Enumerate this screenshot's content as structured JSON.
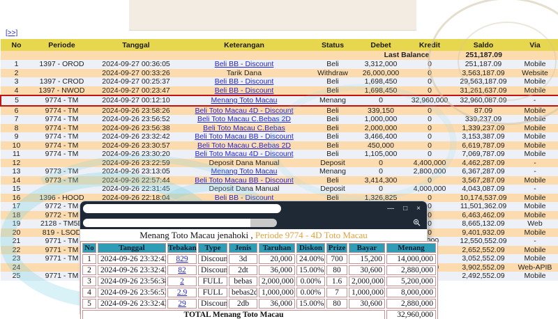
{
  "colors": {
    "accent_header": "#e7d74f",
    "row_light": "#edf0f6",
    "row_peach": "#fcdcae",
    "link_blue": "#2626cc",
    "kredit_blue": "#5353de",
    "saldo_purple": "#7d61d2",
    "lb_navy": "#16169b",
    "hl_red": "#c41212",
    "popup_bar": "#1e2935",
    "popup_teal": "#2f9db6",
    "popup_pink": "#cc8f8f",
    "popup_orange": "#dfa23f"
  },
  "page": {
    "more_link": "[>>]"
  },
  "main_table": {
    "headers": [
      "No",
      "Periode",
      "Tanggal",
      "Keterangan",
      "Status",
      "Debet",
      "Kredit",
      "Saldo",
      "Via"
    ],
    "last_balance_label": "Last Balance",
    "last_balance_value": "251,187.09",
    "rows": [
      {
        "no": "1",
        "periode": "1397 - OROD",
        "tanggal": "2024-09-27 00:36:05",
        "keterangan": "Beli BB - Discount",
        "is_link": true,
        "status": "Beli",
        "debet": "3,312,000",
        "kredit": "0",
        "saldo": "251,187.09",
        "via": "Mobile",
        "highlight": false
      },
      {
        "no": "2",
        "periode": "",
        "tanggal": "2024-09-27 00:33:26",
        "keterangan": "Tarik Dana",
        "is_link": false,
        "status": "Withdraw",
        "debet": "26,000,000",
        "kredit": "0",
        "saldo": "3,563,187.09",
        "via": "Website",
        "highlight": false
      },
      {
        "no": "3",
        "periode": "1397 - CROD",
        "tanggal": "2024-09-27 00:25:37",
        "keterangan": "Beli BB - Discount",
        "is_link": true,
        "status": "Beli",
        "debet": "1,698,450",
        "kredit": "0",
        "saldo": "29,563,187.09",
        "via": "Mobile",
        "highlight": false
      },
      {
        "no": "4",
        "periode": "1397 - NWOD",
        "tanggal": "2024-09-27 00:23:47",
        "keterangan": "Beli BB - Discount",
        "is_link": true,
        "status": "Beli",
        "debet": "1,698,450",
        "kredit": "0",
        "saldo": "31,261,637.09",
        "via": "Mobile",
        "highlight": false
      },
      {
        "no": "5",
        "periode": "9774 - TM",
        "tanggal": "2024-09-27 00:12:10",
        "keterangan": "Menang Toto Macau",
        "is_link": true,
        "status": "Menang",
        "debet": "0",
        "kredit": "32,960,000",
        "saldo": "32,960,087.09",
        "via": "-",
        "highlight": true
      },
      {
        "no": "6",
        "periode": "9774 - TM",
        "tanggal": "2024-09-26 23:58:26",
        "keterangan": "Beli Toto Macau 4D - Discount",
        "is_link": true,
        "status": "Beli",
        "debet": "339,150",
        "kredit": "0",
        "saldo": "87.09",
        "via": "Mobile",
        "highlight": false
      },
      {
        "no": "7",
        "periode": "9774 - TM",
        "tanggal": "2024-09-26 23:56:52",
        "keterangan": "Beli Toto Macau C.Bebas 2D",
        "is_link": true,
        "status": "Beli",
        "debet": "1,000,000",
        "kredit": "0",
        "saldo": "339,237.09",
        "via": "Mobile",
        "highlight": false
      },
      {
        "no": "8",
        "periode": "9774 - TM",
        "tanggal": "2024-09-26 23:56:38",
        "keterangan": "Beli Toto Macau C.Bebas",
        "is_link": true,
        "status": "Beli",
        "debet": "2,000,000",
        "kredit": "0",
        "saldo": "1,339,237.09",
        "via": "Mobile",
        "highlight": false
      },
      {
        "no": "9",
        "periode": "9774 - TM",
        "tanggal": "2024-09-26 23:32:42",
        "keterangan": "Beli Toto Macau BB - Discount",
        "is_link": true,
        "status": "Beli",
        "debet": "3,466,400",
        "kredit": "0",
        "saldo": "3,153,387.09",
        "via": "Mobile",
        "highlight": false
      },
      {
        "no": "10",
        "periode": "9774 - TM",
        "tanggal": "2024-09-26 23:30:57",
        "keterangan": "Beli Toto Macau C.Bebas 2D",
        "is_link": true,
        "status": "Beli",
        "debet": "450,000",
        "kredit": "0",
        "saldo": "6,619,787.09",
        "via": "Mobile",
        "highlight": false
      },
      {
        "no": "11",
        "periode": "9774 - TM",
        "tanggal": "2024-09-26 23:30:20",
        "keterangan": "Beli Toto Macau 4D - Discount",
        "is_link": true,
        "status": "Beli",
        "debet": "1,105,000",
        "kredit": "0",
        "saldo": "7,069,787.09",
        "via": "Mobile",
        "highlight": false
      },
      {
        "no": "12",
        "periode": "",
        "tanggal": "2024-09-26 23:22:59",
        "keterangan": "Deposit Dana Manual",
        "is_link": false,
        "status": "Deposit",
        "debet": "0",
        "kredit": "4,400,000",
        "saldo": "4,462,287.09",
        "via": "-",
        "highlight": false
      },
      {
        "no": "13",
        "periode": "9773 - TM",
        "tanggal": "2024-09-26 23:13:05",
        "keterangan": "Menang Toto Macau",
        "is_link": true,
        "status": "Menang",
        "debet": "0",
        "kredit": "2,800,000",
        "saldo": "6,367,287.09",
        "via": "-",
        "highlight": false
      },
      {
        "no": "14",
        "periode": "9773 - TM",
        "tanggal": "2024-09-26 22:57:44",
        "keterangan": "Beli Toto Macau BB - Discount",
        "is_link": true,
        "status": "Beli",
        "debet": "3,414,300",
        "kredit": "0",
        "saldo": "3,567,287.09",
        "via": "Mobile",
        "highlight": false
      },
      {
        "no": "15",
        "periode": "",
        "tanggal": "2024-09-26 22:31:45",
        "keterangan": "Deposit Dana Manual",
        "is_link": false,
        "status": "Deposit",
        "debet": "0",
        "kredit": "4,000,000",
        "saldo": "4,043,087.09",
        "via": "-",
        "highlight": false
      },
      {
        "no": "16",
        "periode": "1396 - HOOD",
        "tanggal": "2024-09-26 22:18:04",
        "keterangan": "Beli BB - Discount",
        "is_link": true,
        "status": "Beli",
        "debet": "1,326,825",
        "kredit": "0",
        "saldo": "10,174,537.09",
        "via": "Mobile",
        "highlight": false
      },
      {
        "no": "17",
        "periode": "9772 - TM",
        "tanggal": "2024-09-26 21:54:45",
        "keterangan": "Beli Toto Macau 4D - Discount",
        "is_link": true,
        "status": "Beli",
        "debet": "1,445,000",
        "kredit": "0",
        "saldo": "11,501,362.09",
        "via": "Mobile",
        "highlight": false
      },
      {
        "no": "18",
        "periode": "9772 - TM",
        "tanggal": "",
        "keterangan": "",
        "is_link": false,
        "status": "",
        "debet": "",
        "kredit": "0",
        "saldo": "6,463,462.09",
        "via": "Mobile",
        "highlight": false
      },
      {
        "no": "19",
        "periode": "2128 - TM5D",
        "tanggal": "",
        "keterangan": "",
        "is_link": false,
        "status": "",
        "debet": "",
        "kredit": "0",
        "saldo": "8,665,132.09",
        "via": "Web",
        "highlight": false
      },
      {
        "no": "20",
        "periode": "819 - LSOD",
        "tanggal": "",
        "keterangan": "",
        "is_link": false,
        "status": "",
        "debet": "",
        "kredit": "0",
        "saldo": "9,401,932.09",
        "via": "Mobile",
        "highlight": false
      },
      {
        "no": "21",
        "periode": "9771 - TM",
        "tanggal": "",
        "keterangan": "",
        "is_link": false,
        "status": "",
        "debet": "",
        "kredit": "0,000",
        "saldo": "12,550,552.09",
        "via": "-",
        "highlight": false
      },
      {
        "no": "22",
        "periode": "9771 - TM",
        "tanggal": "",
        "keterangan": "",
        "is_link": false,
        "status": "",
        "debet": "",
        "kredit": "0",
        "saldo": "2,652,552.09",
        "via": "Mobile",
        "highlight": false
      },
      {
        "no": "23",
        "periode": "9771 - TM",
        "tanggal": "",
        "keterangan": "",
        "is_link": false,
        "status": "",
        "debet": "",
        "kredit": "0",
        "saldo": "3,052,552.09",
        "via": "Mobile",
        "highlight": false
      },
      {
        "no": "24",
        "periode": "",
        "tanggal": "",
        "keterangan": "",
        "is_link": false,
        "status": "",
        "debet": "",
        "kredit": "0,900",
        "saldo": "3,902,552.09",
        "via": "Web-APIB",
        "highlight": false
      },
      {
        "no": "25",
        "periode": "9771 - TM",
        "tanggal": "",
        "keterangan": "",
        "is_link": false,
        "status": "",
        "debet": "",
        "kredit": "0",
        "saldo": "2,492,552.09",
        "via": "Mobile",
        "highlight": false
      }
    ]
  },
  "popup": {
    "window_controls": {
      "minimize": "—",
      "maximize": "□",
      "close": "×"
    },
    "title_prefix": "Menang Toto Macau jenahoki ,",
    "title_highlight": "Periode 9774 - 4D Toto Macau",
    "table": {
      "headers": [
        "No",
        "Tanggal",
        "Tebakan",
        "Type",
        "Jenis",
        "Taruhan",
        "Diskon",
        "Prize",
        "Bayar",
        "Menang"
      ],
      "rows": [
        {
          "no": "1",
          "tanggal": "2024-09-26 23:32:42",
          "tebakan": "829",
          "type": "Discount",
          "jenis": "3d",
          "taruhan": "20,000",
          "diskon": "24.00%",
          "prize": "700",
          "bayar": "15,200",
          "menang": "14,000,000"
        },
        {
          "no": "2",
          "tanggal": "2024-09-26 23:32:42",
          "tebakan": "82",
          "type": "Discount",
          "jenis": "2dt",
          "taruhan": "36,000",
          "diskon": "15.00%",
          "prize": "80",
          "bayar": "30,600",
          "menang": "2,880,000"
        },
        {
          "no": "3",
          "tanggal": "2024-09-26 23:56:38",
          "tebakan": "2",
          "type": "FULL",
          "jenis": "bebas",
          "taruhan": "2,000,000",
          "diskon": "0.00%",
          "prize": "1.6",
          "bayar": "2,000,000",
          "menang": "5,200,000"
        },
        {
          "no": "4",
          "tanggal": "2024-09-26 23:56:52",
          "tebakan": "2.9",
          "type": "FULL",
          "jenis": "bebas2d",
          "taruhan": "1,000,000",
          "diskon": "0.00%",
          "prize": "7",
          "bayar": "1,000,000",
          "menang": "8,000,000"
        },
        {
          "no": "5",
          "tanggal": "2024-09-26 23:32:42",
          "tebakan": "29",
          "type": "Discount",
          "jenis": "2db",
          "taruhan": "36,000",
          "diskon": "15.00%",
          "prize": "80",
          "bayar": "30,600",
          "menang": "2,880,000"
        }
      ],
      "total_label": "TOTAL  Menang Toto Macau",
      "total_value": "32,960,000"
    }
  }
}
